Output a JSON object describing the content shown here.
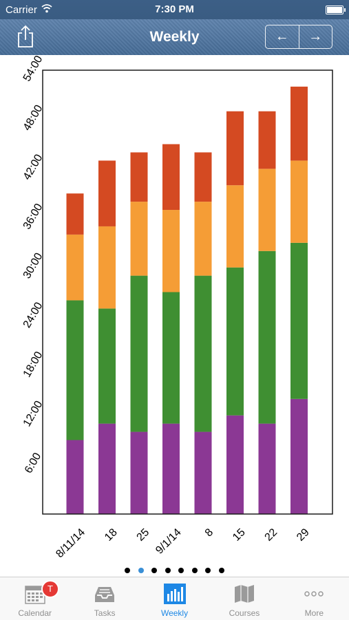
{
  "status_bar": {
    "carrier": "Carrier",
    "time": "7:30 PM"
  },
  "nav": {
    "title": "Weekly",
    "prev": "←",
    "next": "→"
  },
  "colors": {
    "series": [
      "#8b3894",
      "#3f8f32",
      "#f59d36",
      "#d44a22"
    ],
    "accent": "#1e88e5",
    "badge": "#e53935",
    "active_dot": "#3a8fd6"
  },
  "chart_data": {
    "type": "bar",
    "stacked": true,
    "categories": [
      "8/11/14",
      "18",
      "25",
      "9/1/14",
      "8",
      "15",
      "22",
      "29"
    ],
    "y_unit": "hours",
    "ylim": [
      0,
      54
    ],
    "yticks": [
      6,
      12,
      18,
      24,
      30,
      36,
      42,
      48,
      54
    ],
    "ytick_labels": [
      "6:00",
      "12:00",
      "18:00",
      "24:00",
      "30:00",
      "36:00",
      "42:00",
      "48:00",
      "54:00"
    ],
    "grid": false,
    "series": [
      {
        "color": "purple",
        "values": [
          9,
          11,
          10,
          11,
          10,
          12,
          11,
          14
        ]
      },
      {
        "color": "green",
        "values": [
          17,
          14,
          19,
          16,
          19,
          18,
          21,
          19
        ]
      },
      {
        "color": "orange",
        "values": [
          8,
          10,
          9,
          10,
          9,
          10,
          10,
          10
        ]
      },
      {
        "color": "red",
        "values": [
          5,
          8,
          6,
          8,
          6,
          9,
          7,
          9
        ]
      }
    ]
  },
  "page_dots": {
    "count": 8,
    "active": 1
  },
  "tab_bar": {
    "tabs": [
      {
        "label": "Calendar",
        "icon": "calendar-icon",
        "badge": "T",
        "active": false
      },
      {
        "label": "Tasks",
        "icon": "inbox-icon",
        "active": false
      },
      {
        "label": "Weekly",
        "icon": "bar-chart-icon",
        "active": true
      },
      {
        "label": "Courses",
        "icon": "map-icon",
        "active": false
      },
      {
        "label": "More",
        "icon": "more-icon",
        "active": false
      }
    ]
  }
}
